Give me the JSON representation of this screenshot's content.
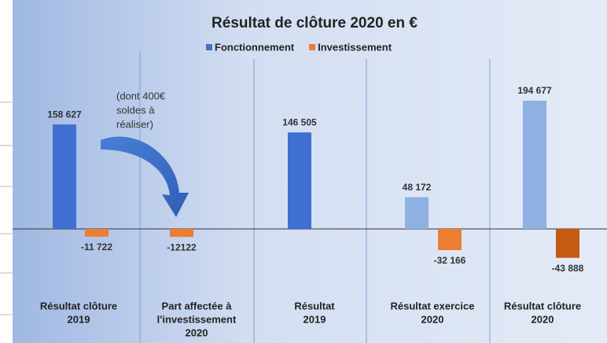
{
  "chart_data": {
    "type": "bar",
    "title": "Résultat de clôture 2020 en €",
    "categories": [
      [
        "Résultat clôture",
        "2019"
      ],
      [
        "Part affectée à",
        "l'investissement",
        "2020"
      ],
      [
        "Résultat",
        "2019"
      ],
      [
        "Résultat exercice",
        "2020"
      ],
      [
        "Résultat  clôture",
        "2020"
      ]
    ],
    "series": [
      {
        "name": "Fonctionnement",
        "color": "#4472c4",
        "colors": [
          "#3f6fd0",
          null,
          "#3f6fd0",
          "#8fb0e3",
          "#8fb0e3"
        ],
        "values": [
          158627,
          null,
          146505,
          48172,
          194677
        ],
        "value_labels": [
          "158 627",
          null,
          "146 505",
          "48 172",
          "194 677"
        ]
      },
      {
        "name": "Investissement",
        "color": "#ed7d31",
        "colors": [
          "#ed7d31",
          "#ed7d31",
          null,
          "#ed7d31",
          "#c55a11"
        ],
        "values": [
          -11722,
          -12122,
          null,
          -32166,
          -43888
        ],
        "value_labels": [
          "-11 722",
          "-12122",
          null,
          "-32 166",
          "-43 888"
        ]
      }
    ],
    "annotation": [
      "(dont 400€",
      "soldes à",
      "réaliser)"
    ],
    "legend": "top"
  }
}
